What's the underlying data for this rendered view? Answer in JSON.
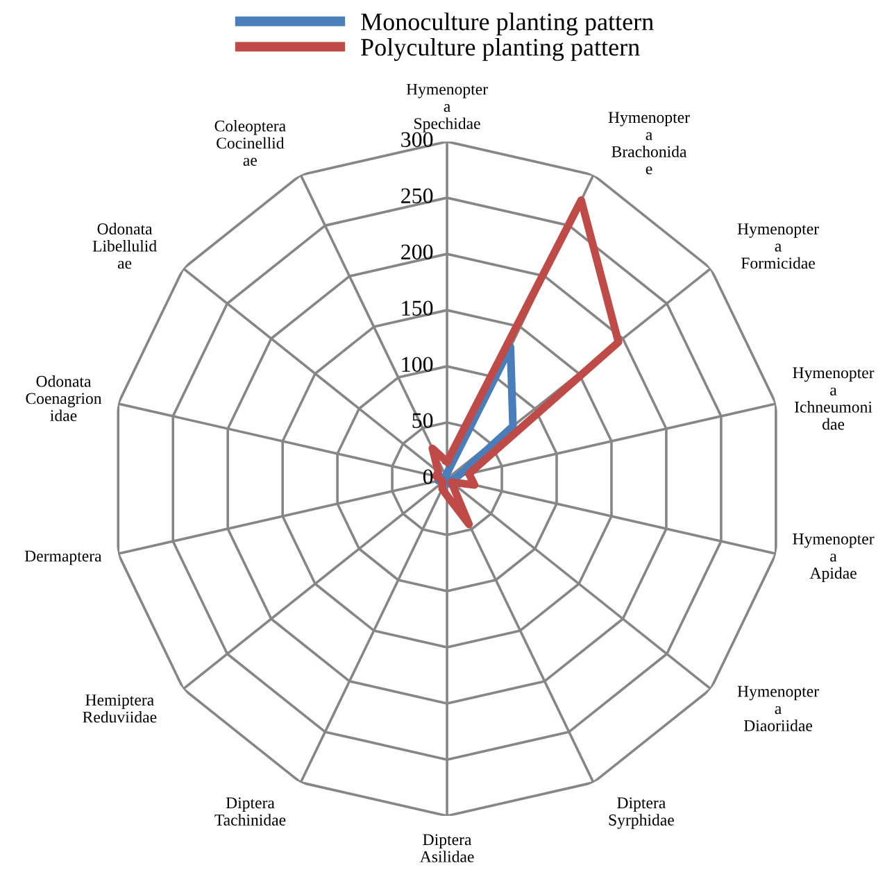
{
  "chart_data": {
    "type": "radar",
    "categories": [
      "Hymenoptera Spechidae",
      "Hymenoptera Brachonidae",
      "Hymenoptera Formicidae",
      "Hymenoptera Ichneumonidae",
      "Hymenoptera Apidae",
      "Hymenoptera Diaoriidae",
      "Diptera Syrphidae",
      "Diptera Asilidae",
      "Diptera Tachinidae",
      "Hemiptera Reduviidae",
      "Dermaptera",
      "Odonata Coenagrionidae",
      "Odonata Libellulidae",
      "Coleoptera Cocinellidae"
    ],
    "series": [
      {
        "name": "Monoculture planting pattern",
        "color": "#4a7ebb",
        "values": [
          5,
          130,
          75,
          10,
          5,
          3,
          5,
          3,
          3,
          3,
          8,
          5,
          3,
          3
        ]
      },
      {
        "name": "Polyculture planting pattern",
        "color": "#be4b48",
        "values": [
          15,
          275,
          195,
          20,
          25,
          5,
          45,
          15,
          10,
          5,
          5,
          10,
          10,
          30
        ]
      }
    ],
    "ylim": [
      0,
      300
    ],
    "yticks": [
      0,
      50,
      100,
      150,
      200,
      250,
      300
    ],
    "grid": true,
    "legend": "top",
    "marker": "none",
    "line_style": "solid"
  }
}
